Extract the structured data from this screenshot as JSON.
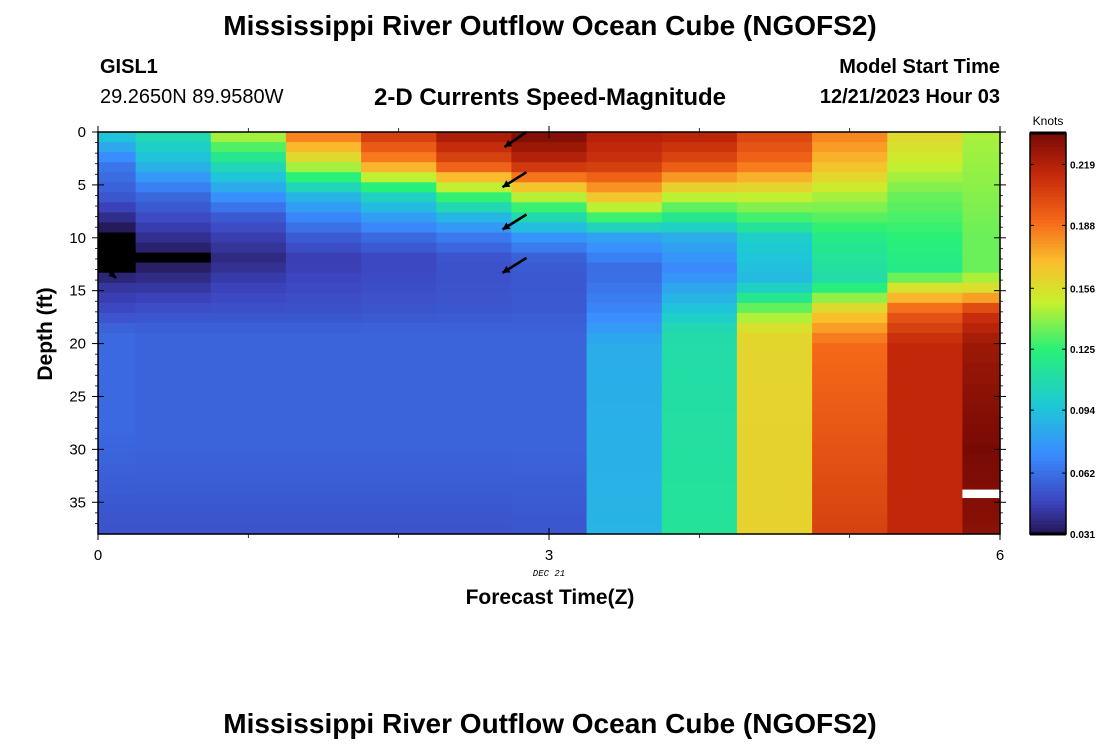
{
  "header": {
    "title": "Mississippi River Outflow Ocean Cube (NGOFS2)",
    "station_id": "GISL1",
    "station_coords": "29.2650N  89.9580W",
    "subtitle": "2-D Currents Speed-Magnitude",
    "model_start_label": "Model Start Time",
    "model_start_time": "12/21/2023 Hour 03"
  },
  "footer": {
    "title": "Mississippi River Outflow Ocean Cube (NGOFS2)"
  },
  "chart_data": {
    "type": "heatmap",
    "title": "2-D Currents Speed-Magnitude",
    "xlabel": "Forecast Time(Z)",
    "ylabel": "Depth (ft)",
    "x_ticks": [
      "0",
      "3",
      "6"
    ],
    "x_date_label": "DEC 21",
    "y_ticks": [
      "0",
      "5",
      "10",
      "15",
      "20",
      "25",
      "30",
      "35"
    ],
    "xlim": [
      0,
      6
    ],
    "ylim": [
      38,
      0
    ],
    "colorbar": {
      "label": "Knots",
      "ticks": [
        "0.031",
        "0.062",
        "0.094",
        "0.125",
        "0.156",
        "0.188",
        "0.219"
      ],
      "range": [
        0.031,
        0.235
      ]
    },
    "time_columns": [
      0.0,
      0.5,
      1.0,
      1.5,
      2.0,
      2.5,
      3.0,
      3.5,
      4.0,
      4.5,
      5.0,
      5.5,
      6.0
    ],
    "column_profiles": [
      [
        [
          0,
          0.1
        ],
        [
          3,
          0.065
        ],
        [
          6,
          0.055
        ],
        [
          8,
          0.04
        ],
        [
          10,
          0.025
        ],
        [
          12,
          0.01
        ],
        [
          14,
          0.04
        ],
        [
          17,
          0.05
        ],
        [
          19,
          0.06
        ],
        [
          28,
          0.06
        ],
        [
          38,
          0.052
        ]
      ],
      [
        [
          0,
          0.11
        ],
        [
          3,
          0.09
        ],
        [
          6,
          0.06
        ],
        [
          8,
          0.05
        ],
        [
          10,
          0.04
        ],
        [
          12,
          0.03
        ],
        [
          14,
          0.04
        ],
        [
          17,
          0.052
        ],
        [
          19,
          0.058
        ],
        [
          30,
          0.058
        ],
        [
          38,
          0.052
        ]
      ],
      [
        [
          0,
          0.15
        ],
        [
          3,
          0.11
        ],
        [
          6,
          0.075
        ],
        [
          8,
          0.055
        ],
        [
          10,
          0.045
        ],
        [
          12,
          0.038
        ],
        [
          14,
          0.045
        ],
        [
          17,
          0.052
        ],
        [
          19,
          0.058
        ],
        [
          30,
          0.058
        ],
        [
          38,
          0.052
        ]
      ],
      [
        [
          0,
          0.19
        ],
        [
          3,
          0.15
        ],
        [
          6,
          0.09
        ],
        [
          8,
          0.07
        ],
        [
          10,
          0.055
        ],
        [
          12,
          0.045
        ],
        [
          14,
          0.048
        ],
        [
          17,
          0.052
        ],
        [
          19,
          0.058
        ],
        [
          30,
          0.058
        ],
        [
          38,
          0.052
        ]
      ],
      [
        [
          0,
          0.21
        ],
        [
          3,
          0.18
        ],
        [
          6,
          0.105
        ],
        [
          8,
          0.08
        ],
        [
          10,
          0.06
        ],
        [
          12,
          0.048
        ],
        [
          14,
          0.05
        ],
        [
          17,
          0.053
        ],
        [
          19,
          0.058
        ],
        [
          30,
          0.058
        ],
        [
          38,
          0.052
        ]
      ],
      [
        [
          0,
          0.225
        ],
        [
          3,
          0.2
        ],
        [
          6,
          0.13
        ],
        [
          8,
          0.09
        ],
        [
          10,
          0.065
        ],
        [
          12,
          0.052
        ],
        [
          14,
          0.052
        ],
        [
          17,
          0.054
        ],
        [
          19,
          0.058
        ],
        [
          30,
          0.058
        ],
        [
          38,
          0.052
        ]
      ],
      [
        [
          0,
          0.235
        ],
        [
          3,
          0.215
        ],
        [
          6,
          0.15
        ],
        [
          8,
          0.11
        ],
        [
          10,
          0.075
        ],
        [
          12,
          0.056
        ],
        [
          14,
          0.054
        ],
        [
          17,
          0.055
        ],
        [
          19,
          0.058
        ],
        [
          30,
          0.058
        ],
        [
          38,
          0.053
        ]
      ],
      [
        [
          0,
          0.22
        ],
        [
          3,
          0.21
        ],
        [
          6,
          0.17
        ],
        [
          8,
          0.13
        ],
        [
          10,
          0.08
        ],
        [
          13,
          0.06
        ],
        [
          17,
          0.07
        ],
        [
          20,
          0.085
        ],
        [
          38,
          0.088
        ]
      ],
      [
        [
          0,
          0.22
        ],
        [
          3,
          0.2
        ],
        [
          6,
          0.15
        ],
        [
          8,
          0.12
        ],
        [
          10,
          0.085
        ],
        [
          13,
          0.07
        ],
        [
          16,
          0.09
        ],
        [
          19,
          0.11
        ],
        [
          38,
          0.115
        ]
      ],
      [
        [
          0,
          0.205
        ],
        [
          3,
          0.19
        ],
        [
          6,
          0.15
        ],
        [
          8,
          0.13
        ],
        [
          10,
          0.1
        ],
        [
          14,
          0.09
        ],
        [
          17,
          0.14
        ],
        [
          19,
          0.16
        ],
        [
          38,
          0.162
        ]
      ],
      [
        [
          0,
          0.185
        ],
        [
          3,
          0.17
        ],
        [
          6,
          0.145
        ],
        [
          10,
          0.12
        ],
        [
          14,
          0.11
        ],
        [
          17,
          0.165
        ],
        [
          20,
          0.19
        ],
        [
          38,
          0.205
        ]
      ],
      [
        [
          0,
          0.16
        ],
        [
          3,
          0.15
        ],
        [
          6,
          0.135
        ],
        [
          10,
          0.125
        ],
        [
          13,
          0.12
        ],
        [
          15,
          0.16
        ],
        [
          17,
          0.195
        ],
        [
          20,
          0.215
        ],
        [
          38,
          0.215
        ]
      ],
      [
        [
          0,
          0.145
        ],
        [
          5,
          0.14
        ],
        [
          10,
          0.135
        ],
        [
          13,
          0.135
        ],
        [
          15,
          0.16
        ],
        [
          17,
          0.21
        ],
        [
          20,
          0.225
        ],
        [
          30,
          0.235
        ],
        [
          38,
          0.23
        ]
      ]
    ],
    "low_patch": {
      "time": [
        0.0,
        0.25
      ],
      "depth": [
        10.5,
        12.5
      ],
      "value": 0.0
    },
    "white_patch": {
      "time": [
        5.75,
        6.0
      ],
      "depth": [
        33.8,
        34.6
      ]
    },
    "vectors": [
      {
        "time": 0.0,
        "depth": 12.2,
        "dx": 18,
        "dy": 17
      },
      {
        "time": 2.85,
        "depth": 0.0,
        "dx": -22,
        "dy": 15
      },
      {
        "time": 2.85,
        "depth": 3.8,
        "dx": -24,
        "dy": 15
      },
      {
        "time": 2.85,
        "depth": 7.8,
        "dx": -24,
        "dy": 15
      },
      {
        "time": 2.85,
        "depth": 11.9,
        "dx": -24,
        "dy": 15
      }
    ]
  }
}
